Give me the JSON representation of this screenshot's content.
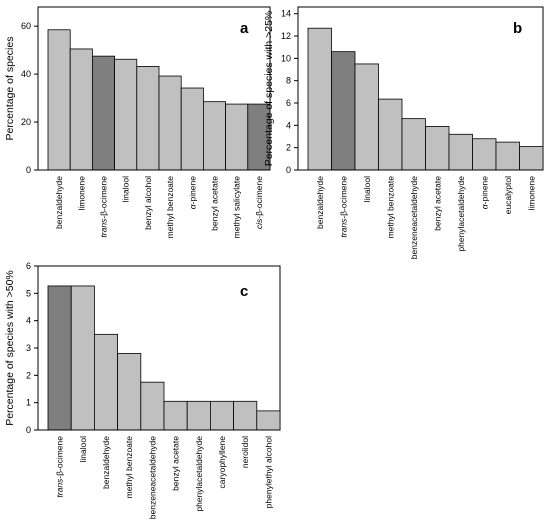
{
  "colors": {
    "light_bar": "#c0c0c0",
    "dark_bar": "#7f7f7f",
    "bar_edge": "#000000"
  },
  "chart_data": [
    {
      "type": "bar",
      "panel_label": "a",
      "ylabel": "Percentage of species",
      "ylim": [
        0,
        68
      ],
      "yticks": [
        0,
        20,
        40,
        60
      ],
      "grid": false,
      "categories": [
        {
          "prefix": "",
          "italic": "",
          "suffix": "benzaldehyde"
        },
        {
          "prefix": "",
          "italic": "",
          "suffix": "limonene"
        },
        {
          "prefix": "",
          "italic": "trans",
          "suffix": "-β-ocimene"
        },
        {
          "prefix": "",
          "italic": "",
          "suffix": "linalool"
        },
        {
          "prefix": "",
          "italic": "",
          "suffix": "benzyl alcohol"
        },
        {
          "prefix": "",
          "italic": "",
          "suffix": "methyl benzoate"
        },
        {
          "prefix": "",
          "italic": "α",
          "suffix": "-pinene"
        },
        {
          "prefix": "",
          "italic": "",
          "suffix": "benzyl acetate"
        },
        {
          "prefix": "",
          "italic": "",
          "suffix": "methyl salicylate"
        },
        {
          "prefix": "",
          "italic": "cis",
          "suffix": "-β-ocimene"
        }
      ],
      "values": [
        58.5,
        50.5,
        47.5,
        46.2,
        43.2,
        39.2,
        34.2,
        28.5,
        27.5,
        27.5
      ],
      "highlight": [
        false,
        false,
        true,
        false,
        false,
        false,
        false,
        false,
        false,
        true
      ]
    },
    {
      "type": "bar",
      "panel_label": "b",
      "ylabel": "Percentage of species with >25%",
      "ylim": [
        0,
        14.6
      ],
      "yticks": [
        0,
        2,
        4,
        6,
        8,
        10,
        12,
        14
      ],
      "grid": false,
      "categories": [
        {
          "prefix": "",
          "italic": "",
          "suffix": "benzaldehyde"
        },
        {
          "prefix": "",
          "italic": "trans",
          "suffix": "-β-ocimene"
        },
        {
          "prefix": "",
          "italic": "",
          "suffix": "linalool"
        },
        {
          "prefix": "",
          "italic": "",
          "suffix": "methyl benzoate"
        },
        {
          "prefix": "",
          "italic": "",
          "suffix": "benzeneacetaldehyde"
        },
        {
          "prefix": "",
          "italic": "",
          "suffix": "benzyl acetate"
        },
        {
          "prefix": "",
          "italic": "",
          "suffix": "phenylacetaldehyde"
        },
        {
          "prefix": "",
          "italic": "α",
          "suffix": "-pinene"
        },
        {
          "prefix": "",
          "italic": "",
          "suffix": "eucalyptol"
        },
        {
          "prefix": "",
          "italic": "",
          "suffix": "limonene"
        }
      ],
      "values": [
        12.7,
        10.6,
        9.5,
        6.35,
        4.6,
        3.9,
        3.2,
        2.8,
        2.5,
        2.1
      ],
      "highlight": [
        false,
        true,
        false,
        false,
        false,
        false,
        false,
        false,
        false,
        false
      ]
    },
    {
      "type": "bar",
      "panel_label": "c",
      "ylabel": "Percentage of species with >50%",
      "ylim": [
        0,
        6
      ],
      "yticks": [
        0,
        1,
        2,
        3,
        4,
        5,
        6
      ],
      "grid": false,
      "categories": [
        {
          "prefix": "",
          "italic": "trans",
          "suffix": "-β-ocimene"
        },
        {
          "prefix": "",
          "italic": "",
          "suffix": "linalool"
        },
        {
          "prefix": "",
          "italic": "",
          "suffix": "benzaldehyde"
        },
        {
          "prefix": "",
          "italic": "",
          "suffix": "methyl benzoate"
        },
        {
          "prefix": "",
          "italic": "",
          "suffix": "benzeneacetaldehyde"
        },
        {
          "prefix": "",
          "italic": "",
          "suffix": "benzyl acetate"
        },
        {
          "prefix": "",
          "italic": "",
          "suffix": "phenylacetaldehyde"
        },
        {
          "prefix": "",
          "italic": "",
          "suffix": "caryophyllene"
        },
        {
          "prefix": "",
          "italic": "",
          "suffix": "nerolidol"
        },
        {
          "prefix": "",
          "italic": "",
          "suffix": "phenylethyl alcohol"
        }
      ],
      "values": [
        5.27,
        5.27,
        3.5,
        2.8,
        1.75,
        1.05,
        1.05,
        1.05,
        1.05,
        0.7
      ],
      "highlight": [
        true,
        false,
        false,
        false,
        false,
        false,
        false,
        false,
        false,
        false
      ]
    }
  ]
}
